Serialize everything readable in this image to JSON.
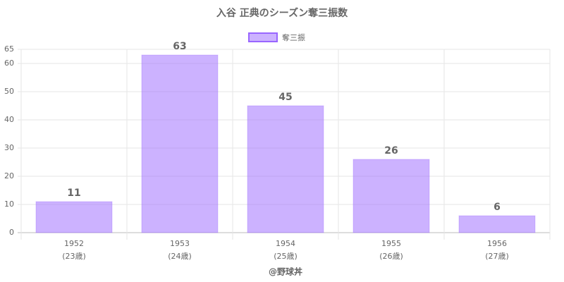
{
  "chart_data": {
    "type": "bar",
    "title": "入谷 正典のシーズン奪三振数",
    "legend": "奪三振",
    "categories": [
      [
        "1952",
        "(23歳)"
      ],
      [
        "1953",
        "(24歳)"
      ],
      [
        "1954",
        "(25歳)"
      ],
      [
        "1955",
        "(26歳)"
      ],
      [
        "1956",
        "(27歳)"
      ]
    ],
    "values": [
      11,
      63,
      45,
      26,
      6
    ],
    "color": "#9966ff",
    "ylim": [
      0,
      65
    ],
    "yticks": [
      0,
      10,
      20,
      30,
      40,
      50,
      60,
      65
    ],
    "grid": true,
    "credit": "@野球丼"
  }
}
